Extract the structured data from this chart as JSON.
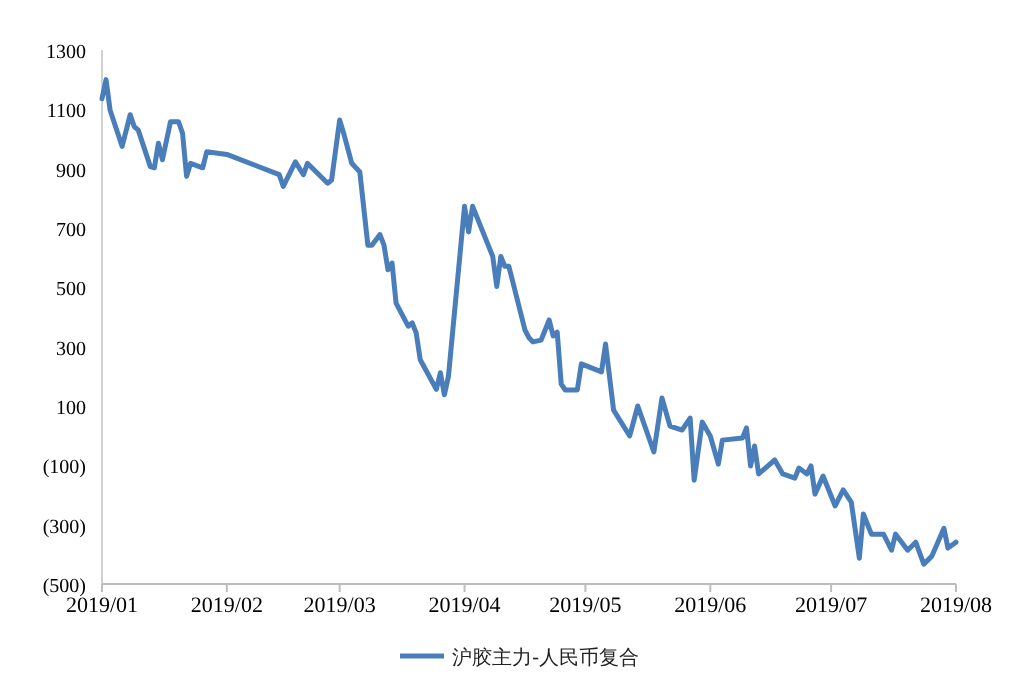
{
  "chart_data": {
    "type": "line",
    "x": [
      "2019-01-01",
      "2019-01-02",
      "2019-01-03",
      "2019-01-06",
      "2019-01-08",
      "2019-01-09",
      "2019-01-10",
      "2019-01-13",
      "2019-01-14",
      "2019-01-15",
      "2019-01-16",
      "2019-01-18",
      "2019-01-20",
      "2019-01-21",
      "2019-01-22",
      "2019-01-23",
      "2019-01-26",
      "2019-01-27",
      "2019-02-01",
      "2019-02-14",
      "2019-02-15",
      "2019-02-18",
      "2019-02-20",
      "2019-02-21",
      "2019-02-26",
      "2019-02-27",
      "2019-03-01",
      "2019-03-02",
      "2019-03-04",
      "2019-03-06",
      "2019-03-08",
      "2019-03-09",
      "2019-03-11",
      "2019-03-12",
      "2019-03-13",
      "2019-03-14",
      "2019-03-15",
      "2019-03-18",
      "2019-03-19",
      "2019-03-20",
      "2019-03-21",
      "2019-03-25",
      "2019-03-26",
      "2019-03-27",
      "2019-03-28",
      "2019-04-01",
      "2019-04-02",
      "2019-04-03",
      "2019-04-04",
      "2019-04-08",
      "2019-04-09",
      "2019-04-10",
      "2019-04-11",
      "2019-04-12",
      "2019-04-16",
      "2019-04-17",
      "2019-04-18",
      "2019-04-20",
      "2019-04-22",
      "2019-04-23",
      "2019-04-24",
      "2019-04-25",
      "2019-04-26",
      "2019-04-29",
      "2019-04-30",
      "2019-05-05",
      "2019-05-06",
      "2019-05-08",
      "2019-05-12",
      "2019-05-14",
      "2019-05-18",
      "2019-05-20",
      "2019-05-22",
      "2019-05-25",
      "2019-05-27",
      "2019-05-28",
      "2019-05-30",
      "2019-06-01",
      "2019-06-03",
      "2019-06-04",
      "2019-06-09",
      "2019-06-10",
      "2019-06-11",
      "2019-06-12",
      "2019-06-13",
      "2019-06-17",
      "2019-06-19",
      "2019-06-22",
      "2019-06-23",
      "2019-06-25",
      "2019-06-26",
      "2019-06-27",
      "2019-06-29",
      "2019-07-02",
      "2019-07-04",
      "2019-07-06",
      "2019-07-08",
      "2019-07-09",
      "2019-07-11",
      "2019-07-14",
      "2019-07-16",
      "2019-07-17",
      "2019-07-20",
      "2019-07-22",
      "2019-07-24",
      "2019-07-26",
      "2019-07-29",
      "2019-07-30",
      "2019-08-01"
    ],
    "series": [
      {
        "name": "沪胶主力-人民币复合",
        "color": "#4a7ebb",
        "values": [
          1136,
          1200,
          1098,
          975,
          1082,
          1042,
          1030,
          907,
          903,
          986,
          930,
          1058,
          1058,
          1019,
          874,
          918,
          903,
          957,
          948,
          880,
          840,
          923,
          880,
          918,
          851,
          862,
          1064,
          1019,
          918,
          889,
          642,
          642,
          678,
          642,
          559,
          582,
          447,
          369,
          380,
          346,
          256,
          156,
          212,
          138,
          200,
          773,
          687,
          773,
          739,
          604,
          503,
          604,
          571,
          571,
          356,
          330,
          316,
          322,
          390,
          336,
          349,
          174,
          154,
          154,
          242,
          215,
          309,
          86,
          -1,
          100,
          -55,
          127,
          32,
          19,
          59,
          -150,
          46,
          -1,
          -96,
          -15,
          -8,
          26,
          -102,
          -35,
          -129,
          -82,
          -129,
          -143,
          -109,
          -129,
          -102,
          -197,
          -136,
          -237,
          -183,
          -224,
          -413,
          -264,
          -332,
          -332,
          -386,
          -332,
          -386,
          -359,
          -433,
          -406,
          -312,
          -379,
          -359
        ]
      }
    ],
    "xlim": [
      "2019-01-01",
      "2019-08-01"
    ],
    "xticks": [
      {
        "value": "2019-01-01",
        "label": "2019/01"
      },
      {
        "value": "2019-02-01",
        "label": "2019/02"
      },
      {
        "value": "2019-03-01",
        "label": "2019/03"
      },
      {
        "value": "2019-04-01",
        "label": "2019/04"
      },
      {
        "value": "2019-05-01",
        "label": "2019/05"
      },
      {
        "value": "2019-06-01",
        "label": "2019/06"
      },
      {
        "value": "2019-07-01",
        "label": "2019/07"
      },
      {
        "value": "2019-08-01",
        "label": "2019/08"
      }
    ],
    "ylim": [
      -500,
      1300
    ],
    "yticks": [
      1300,
      1100,
      900,
      700,
      500,
      300,
      100,
      {
        "value": -100,
        "label": "(100)"
      },
      {
        "value": -300,
        "label": "(300)"
      },
      {
        "value": -500,
        "label": "(500)"
      }
    ],
    "grid": false,
    "legend": "bottom",
    "marker": "none",
    "line_style": "solid"
  }
}
